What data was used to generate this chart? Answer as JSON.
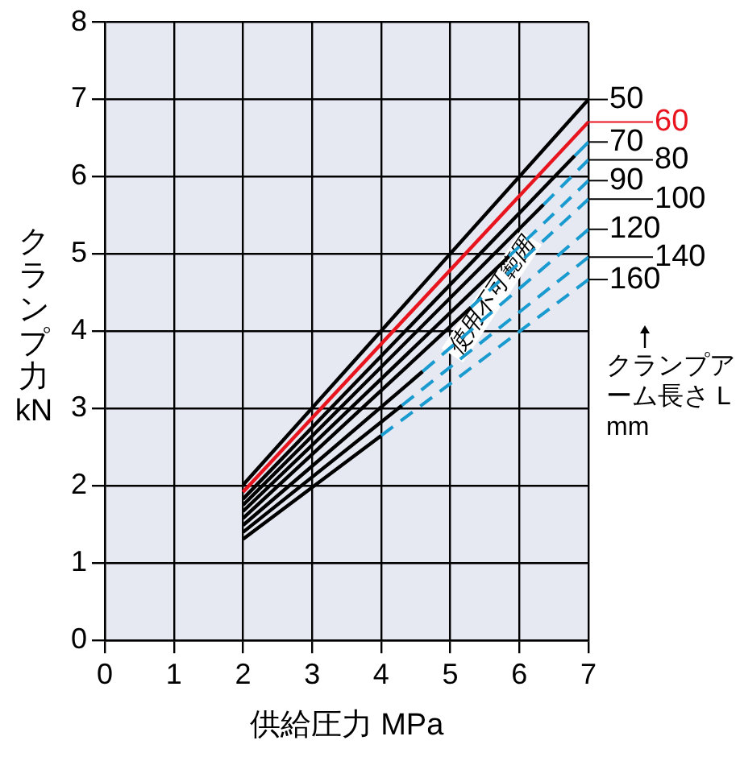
{
  "chart_data": {
    "type": "line",
    "xlabel": "供給圧力 MPa",
    "ylabel": "クランプ力 kN",
    "legend_title": "クランプアーム長さ L mm",
    "xlim": [
      0,
      7
    ],
    "ylim": [
      0,
      8
    ],
    "xticks": [
      0,
      1,
      2,
      3,
      4,
      5,
      6,
      7
    ],
    "yticks": [
      0,
      1,
      2,
      3,
      4,
      5,
      6,
      7,
      8
    ],
    "grid": true,
    "legend": "right",
    "marker": "none",
    "annotations": [
      {
        "text": "使用不可範囲",
        "x": 5.6,
        "y": 4.45
      }
    ],
    "series": [
      {
        "name": "50",
        "color": "#000000",
        "x": [
          2,
          7
        ],
        "values": [
          2.01,
          7.0
        ]
      },
      {
        "name": "60",
        "color": "#e8141e",
        "x": [
          2,
          7
        ],
        "values": [
          1.92,
          6.71
        ]
      },
      {
        "name": "70",
        "color": "#000000",
        "x": [
          2,
          6.8
        ],
        "values": [
          1.83,
          6.27
        ]
      },
      {
        "color": "#1a9bd0",
        "line_style": "dashed",
        "x": [
          6.8,
          7
        ],
        "values": [
          6.27,
          6.45
        ]
      },
      {
        "name": "80",
        "color": "#000000",
        "x": [
          2,
          6.35
        ],
        "values": [
          1.75,
          5.64
        ]
      },
      {
        "color": "#1a9bd0",
        "line_style": "dashed",
        "x": [
          6.35,
          7
        ],
        "values": [
          5.64,
          6.22
        ]
      },
      {
        "name": "90",
        "color": "#000000",
        "x": [
          2,
          5.85
        ],
        "values": [
          1.67,
          4.97
        ]
      },
      {
        "color": "#1a9bd0",
        "line_style": "dashed",
        "x": [
          5.85,
          7
        ],
        "values": [
          4.97,
          5.95
        ]
      },
      {
        "name": "100",
        "color": "#000000",
        "x": [
          2,
          5.3
        ],
        "values": [
          1.58,
          4.31
        ]
      },
      {
        "color": "#1a9bd0",
        "line_style": "dashed",
        "x": [
          5.3,
          7
        ],
        "values": [
          4.31,
          5.71
        ]
      },
      {
        "name": "120",
        "color": "#000000",
        "x": [
          2,
          4.6
        ],
        "values": [
          1.49,
          3.48
        ]
      },
      {
        "color": "#1a9bd0",
        "line_style": "dashed",
        "x": [
          4.6,
          7
        ],
        "values": [
          3.48,
          5.32
        ]
      },
      {
        "name": "140",
        "color": "#000000",
        "x": [
          2,
          4.3
        ],
        "values": [
          1.4,
          3.04
        ]
      },
      {
        "color": "#1a9bd0",
        "line_style": "dashed",
        "x": [
          4.3,
          7
        ],
        "values": [
          3.04,
          4.96
        ]
      },
      {
        "name": "160",
        "color": "#000000",
        "x": [
          2,
          4.0
        ],
        "values": [
          1.31,
          2.65
        ]
      },
      {
        "color": "#1a9bd0",
        "line_style": "dashed",
        "x": [
          4.0,
          7
        ],
        "values": [
          2.65,
          4.67
        ]
      }
    ]
  }
}
